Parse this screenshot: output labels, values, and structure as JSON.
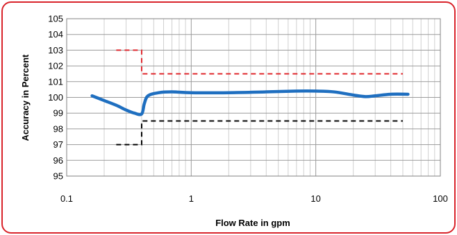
{
  "chart_data": {
    "type": "line",
    "title": "",
    "xlabel": "Flow Rate in gpm",
    "ylabel": "Accuracy in Percent",
    "xscale": "log",
    "xlim": [
      0.1,
      100
    ],
    "ylim": [
      95,
      105
    ],
    "x_tick_labels": [
      "0.1",
      "1",
      "10",
      "100"
    ],
    "x_tick_values": [
      0.1,
      1,
      10,
      100
    ],
    "y_tick_values": [
      95,
      96,
      97,
      98,
      99,
      100,
      101,
      102,
      103,
      104,
      105
    ],
    "y_tick_labels": [
      "95",
      "96",
      "97",
      "98",
      "99",
      "100",
      "101",
      "102",
      "103",
      "104",
      "105"
    ],
    "grid": true,
    "legend": "none",
    "series": [
      {
        "style": "solid",
        "color": "#1f6fc0",
        "x": [
          0.16,
          0.2,
          0.25,
          0.3,
          0.35,
          0.4,
          0.42,
          0.45,
          0.55,
          0.7,
          1,
          2,
          4,
          7,
          10,
          14,
          20,
          25,
          30,
          40,
          55
        ],
        "y": [
          100.1,
          99.8,
          99.5,
          99.2,
          99.0,
          98.95,
          99.6,
          100.1,
          100.3,
          100.35,
          100.3,
          100.3,
          100.35,
          100.4,
          100.4,
          100.35,
          100.15,
          100.05,
          100.1,
          100.2,
          100.2
        ]
      },
      {
        "style": "dashed",
        "color": "#e0282e",
        "x": [
          0.25,
          0.4,
          0.4,
          50
        ],
        "y": [
          103,
          103,
          101.5,
          101.5
        ]
      },
      {
        "style": "dashed",
        "color": "#000000",
        "x": [
          0.25,
          0.4,
          0.4,
          50
        ],
        "y": [
          97,
          97,
          98.5,
          98.5
        ]
      }
    ]
  }
}
